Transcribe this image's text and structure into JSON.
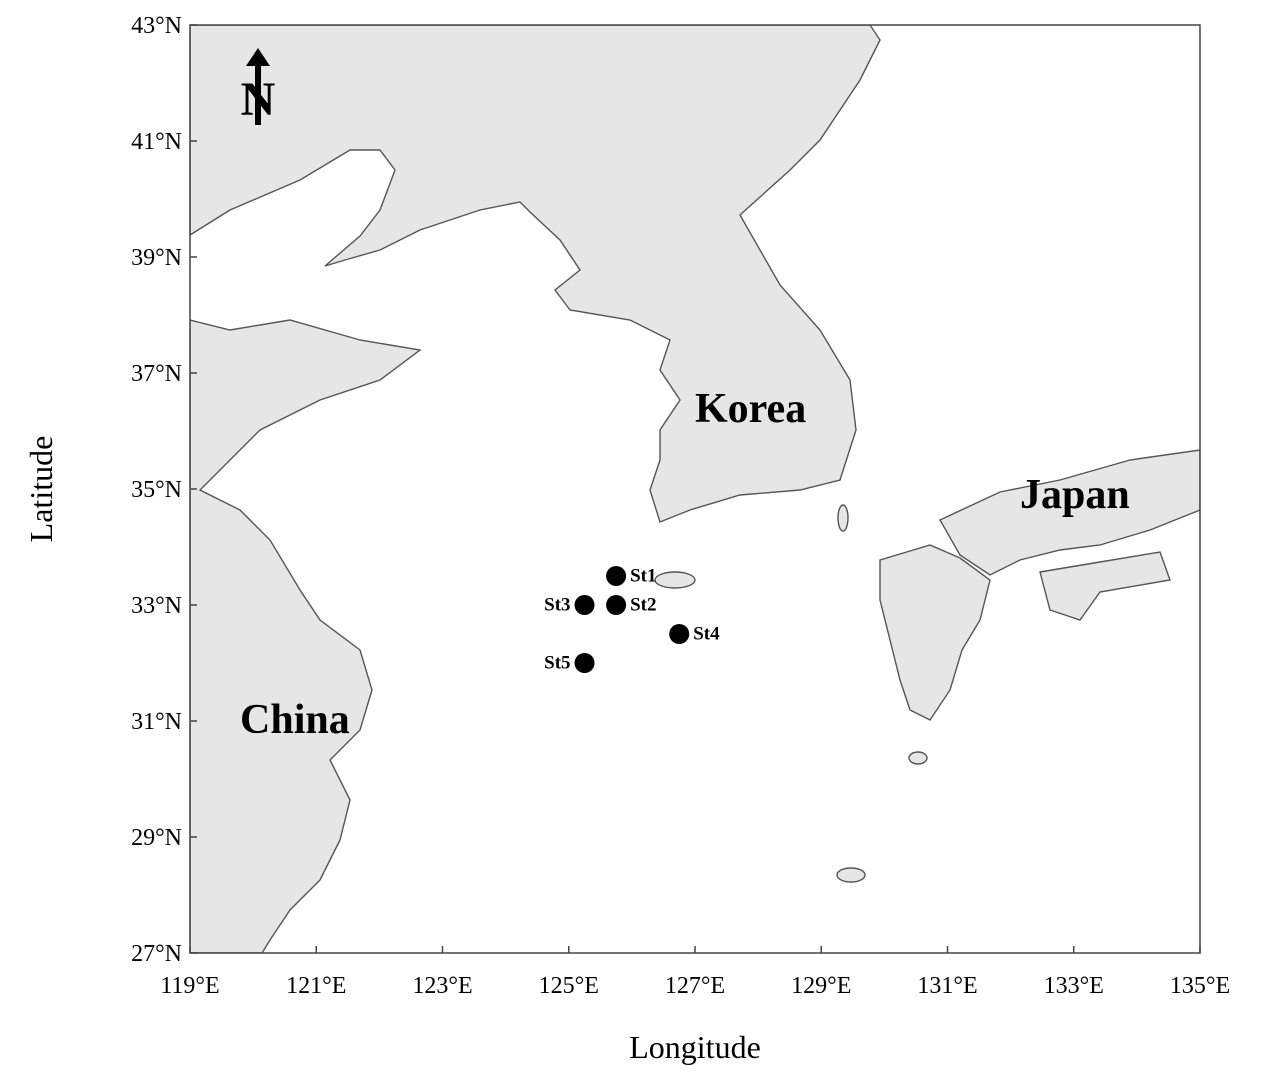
{
  "chart_data": {
    "type": "map",
    "x_label": "Longitude",
    "y_label": "Latitude",
    "north_label": "N",
    "xlim": [
      119,
      135
    ],
    "ylim": [
      27,
      43
    ],
    "xticks": [
      {
        "value": 119,
        "label": "119°E"
      },
      {
        "value": 121,
        "label": "121°E"
      },
      {
        "value": 123,
        "label": "123°E"
      },
      {
        "value": 125,
        "label": "125°E"
      },
      {
        "value": 127,
        "label": "127°E"
      },
      {
        "value": 129,
        "label": "129°E"
      },
      {
        "value": 131,
        "label": "131°E"
      },
      {
        "value": 133,
        "label": "133°E"
      },
      {
        "value": 135,
        "label": "135°E"
      }
    ],
    "yticks": [
      {
        "value": 27,
        "label": "27°N"
      },
      {
        "value": 29,
        "label": "29°N"
      },
      {
        "value": 31,
        "label": "31°N"
      },
      {
        "value": 33,
        "label": "33°N"
      },
      {
        "value": 35,
        "label": "35°N"
      },
      {
        "value": 37,
        "label": "37°N"
      },
      {
        "value": 39,
        "label": "39°N"
      },
      {
        "value": 41,
        "label": "41°N"
      },
      {
        "value": 43,
        "label": "43°N"
      }
    ],
    "places": [
      "Korea",
      "Japan",
      "China"
    ],
    "stations": {
      "names": [
        "St1",
        "St2",
        "St3",
        "St4",
        "St5"
      ],
      "lon": [
        125.75,
        125.75,
        125.25,
        126.75,
        125.25
      ],
      "lat": [
        33.5,
        33.0,
        33.0,
        32.5,
        32.0
      ],
      "color": "#000000"
    }
  }
}
